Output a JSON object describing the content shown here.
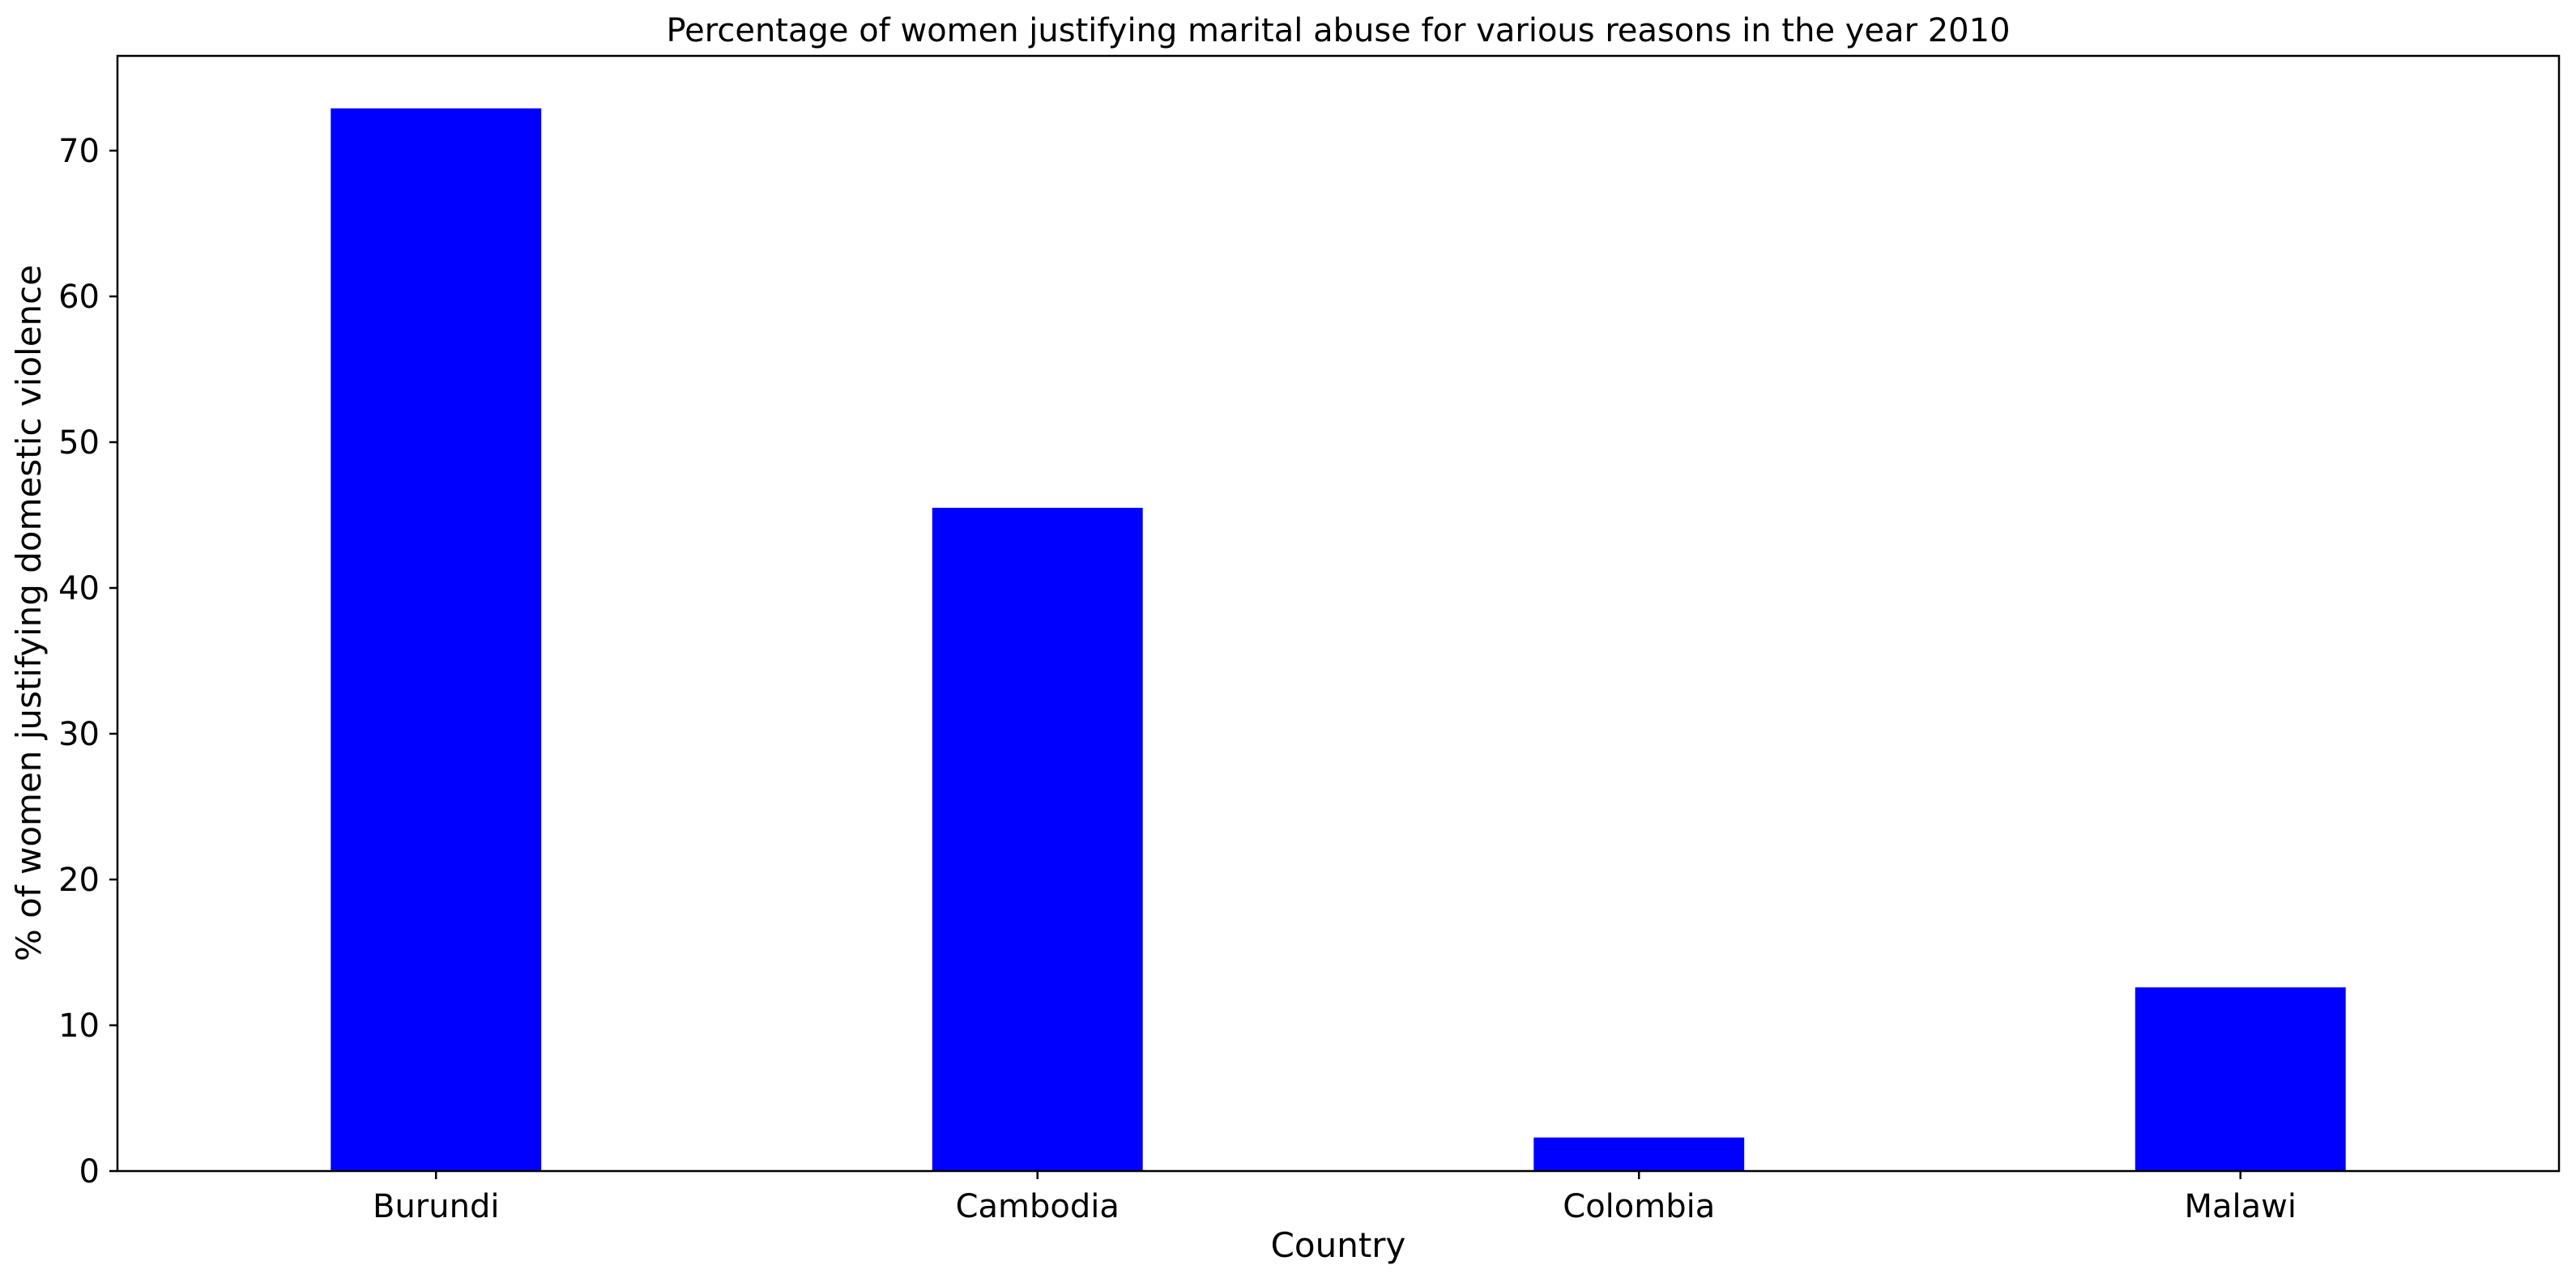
{
  "chart_data": {
    "type": "bar",
    "title": "Percentage of women justifying marital abuse for various reasons in the year 2010",
    "xlabel": "Country",
    "ylabel": "% of women justifying domestic violence",
    "categories": [
      "Burundi",
      "Cambodia",
      "Colombia",
      "Malawi"
    ],
    "values": [
      72.9,
      45.5,
      2.3,
      12.6
    ],
    "ylim": [
      0,
      76.5
    ],
    "yticks": [
      0,
      10,
      20,
      30,
      40,
      50,
      60,
      70
    ],
    "grid": false,
    "bar_color": "#0000ff"
  }
}
